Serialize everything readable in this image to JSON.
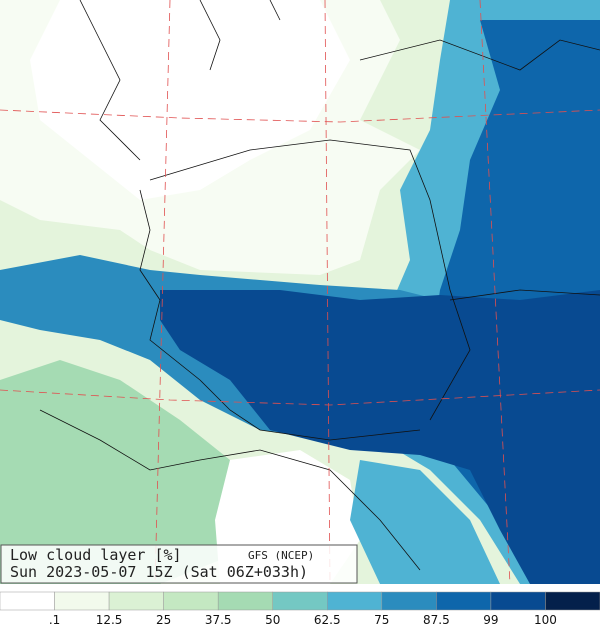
{
  "caption": {
    "title": "Low cloud layer  [%]",
    "source": "GFS (NCEP)",
    "time": "Sun 2023-05-07 15Z (Sat 06Z+033h)"
  },
  "colorbar": {
    "colors": [
      "#ffffff",
      "#f2faec",
      "#dbf1d4",
      "#c4e8c2",
      "#a5dbb3",
      "#74c8c3",
      "#4fb3d3",
      "#2b8cbe",
      "#0e66ab",
      "#084a91",
      "#04204b"
    ],
    "labels": [
      ".1",
      "12.5",
      "25",
      "37.5",
      "50",
      "62.5",
      "75",
      "87.5",
      "99",
      "100"
    ]
  }
}
